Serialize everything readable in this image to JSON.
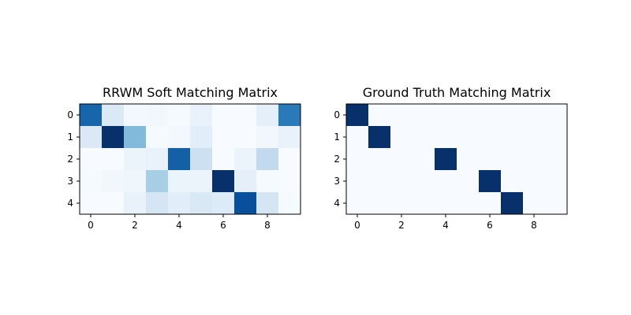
{
  "chart_data": [
    {
      "type": "heatmap",
      "title": "RRWM Soft Matching Matrix",
      "colormap": "Blues",
      "rows": 5,
      "cols": 10,
      "xticks": [
        0,
        2,
        4,
        6,
        8
      ],
      "yticks": [
        0,
        1,
        2,
        3,
        4
      ],
      "values": [
        [
          0.8,
          0.15,
          0.03,
          0.04,
          0.02,
          0.08,
          0.01,
          0.01,
          0.1,
          0.72
        ],
        [
          0.15,
          1.0,
          0.45,
          0.02,
          0.03,
          0.12,
          0.01,
          0.01,
          0.04,
          0.08
        ],
        [
          0.01,
          0.01,
          0.07,
          0.08,
          0.82,
          0.22,
          0.01,
          0.07,
          0.27,
          0.01
        ],
        [
          0.02,
          0.04,
          0.05,
          0.35,
          0.07,
          0.07,
          1.0,
          0.1,
          0.02,
          0.01
        ],
        [
          0.01,
          0.01,
          0.08,
          0.18,
          0.12,
          0.16,
          0.14,
          0.88,
          0.18,
          0.02
        ]
      ]
    },
    {
      "type": "heatmap",
      "title": "Ground Truth Matching Matrix",
      "colormap": "Blues",
      "rows": 5,
      "cols": 10,
      "xticks": [
        0,
        2,
        4,
        6,
        8
      ],
      "yticks": [
        0,
        1,
        2,
        3,
        4
      ],
      "values": [
        [
          1,
          0,
          0,
          0,
          0,
          0,
          0,
          0,
          0,
          0
        ],
        [
          0,
          1,
          0,
          0,
          0,
          0,
          0,
          0,
          0,
          0
        ],
        [
          0,
          0,
          0,
          0,
          1,
          0,
          0,
          0,
          0,
          0
        ],
        [
          0,
          0,
          0,
          0,
          0,
          0,
          1,
          0,
          0,
          0
        ],
        [
          0,
          0,
          0,
          0,
          0,
          0,
          0,
          1,
          0,
          0
        ]
      ]
    }
  ]
}
